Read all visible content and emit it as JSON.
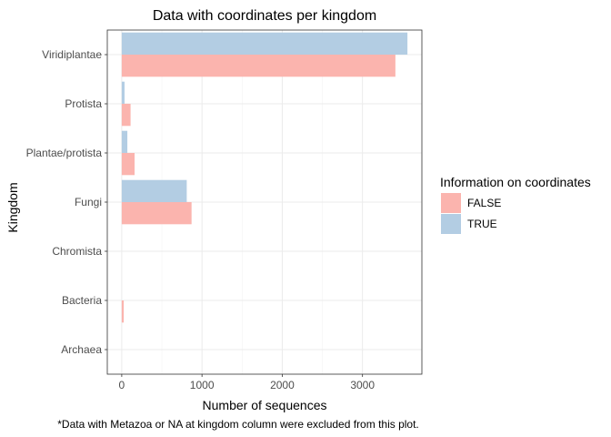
{
  "chart_data": {
    "type": "bar",
    "orientation": "horizontal",
    "title": "Data with coordinates per kingdom",
    "xlabel": "Number of sequences",
    "ylabel": "Kingdom",
    "caption": "*Data with Metazoa or NA at kingdom column were excluded from this plot.",
    "categories": [
      "Viridiplantae",
      "Protista",
      "Plantae/protista",
      "Fungi",
      "Chromista",
      "Bacteria",
      "Archaea"
    ],
    "series": [
      {
        "name": "FALSE",
        "color": "#fbb4ae",
        "values": [
          3410,
          110,
          160,
          870,
          0,
          25,
          0
        ]
      },
      {
        "name": "TRUE",
        "color": "#b3cde3",
        "values": [
          3560,
          35,
          70,
          810,
          0,
          0,
          0
        ]
      }
    ],
    "xlim": [
      -180,
      3740
    ],
    "xticks": [
      0,
      1000,
      2000,
      3000
    ],
    "grid": true,
    "legend": {
      "title": "Information on coordinates",
      "position": "right"
    }
  }
}
